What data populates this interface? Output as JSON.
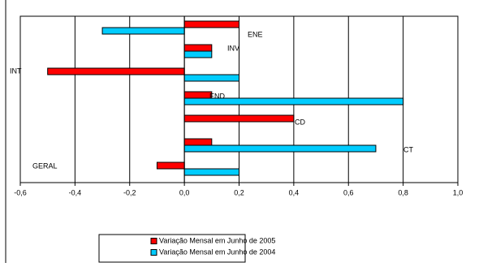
{
  "chart_data": {
    "type": "hbar",
    "categories": [
      "ENE",
      "INV",
      "INT",
      "END",
      "CD",
      "CT",
      "GERAL"
    ],
    "series": [
      {
        "name": "Variação Mensal em Junho de 2005",
        "color": "#ff0000",
        "values": [
          0.2,
          0.1,
          -0.5,
          0.1,
          0.4,
          0.1,
          -0.1
        ]
      },
      {
        "name": "Variação Mensal em Junho de 2004",
        "color": "#00ccff",
        "values": [
          -0.3,
          0.1,
          0.2,
          0.8,
          0,
          0.7,
          0.2
        ]
      }
    ],
    "xlim": [
      -0.6,
      1.0
    ],
    "xticks": [
      {
        "value": -0.6,
        "label": "-0,6"
      },
      {
        "value": -0.4,
        "label": "-0,4"
      },
      {
        "value": -0.2,
        "label": "-0,2"
      },
      {
        "value": 0,
        "label": "0,0"
      },
      {
        "value": 0.2,
        "label": "0,2"
      },
      {
        "value": 0.4,
        "label": "0,4"
      },
      {
        "value": 0.6,
        "label": "0,6"
      },
      {
        "value": 0.8,
        "label": "0,8"
      },
      {
        "value": 1.0,
        "label": "1,0"
      }
    ],
    "grid": true
  }
}
